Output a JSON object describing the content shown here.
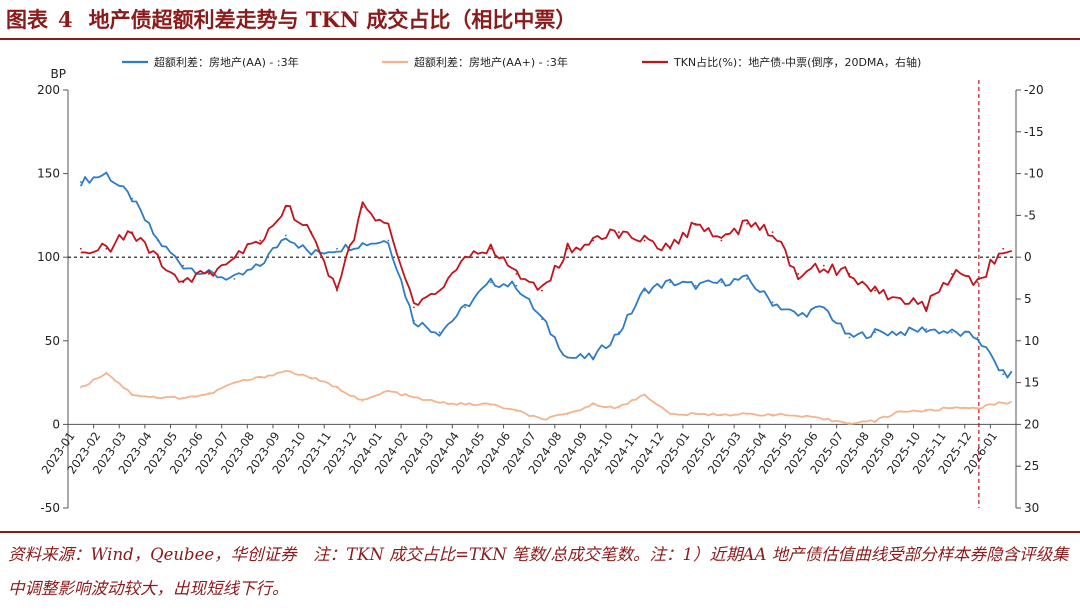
{
  "title": {
    "prefix": "图表",
    "number": "4",
    "text": "地产债超额利差走势与 TKN 成交占比（相比中票）"
  },
  "source_note": "资料来源：Wind，Qeubee，华创证券　注：TKN 成交占比=TKN 笔数/总成交笔数。注：1）近期AA 地产债估值曲线受部分样本券隐含评级集中调整影响波动较大，出现短线下行。",
  "colors": {
    "title": "#8B1A1A",
    "aa": "#2E7BC4",
    "aaplus": "#F2B48E",
    "tkn": "#C0141C",
    "marker": "#C0141C"
  },
  "chart_data": {
    "type": "line",
    "left_axis_unit": "BP",
    "left_ylim": [
      -50,
      200
    ],
    "left_ticks": [
      "-50",
      "0",
      "50",
      "100",
      "150",
      "200"
    ],
    "right_ylim_inverted": [
      30,
      -20
    ],
    "right_ticks": [
      "-20",
      "-15",
      "-10",
      "-5",
      "0",
      "5",
      "10",
      "15",
      "20",
      "25",
      "30"
    ],
    "x_categories": [
      "2023-01",
      "2023-02",
      "2023-03",
      "2023-04",
      "2023-05",
      "2023-06",
      "2023-07",
      "2023-08",
      "2023-09",
      "2023-10",
      "2023-11",
      "2023-12",
      "2024-01",
      "2024-02",
      "2024-03",
      "2024-04",
      "2024-05",
      "2024-06",
      "2024-07",
      "2024-08",
      "2024-09",
      "2024-10",
      "2024-11",
      "2024-12",
      "2025-01",
      "2025-02",
      "2025-03",
      "2025-04",
      "2025-05",
      "2025-06",
      "2025-07",
      "2025-08",
      "2025-09",
      "2025-10",
      "2025-11",
      "2025-12",
      "2026-01"
    ],
    "grid": false,
    "reference_line_left": 100,
    "vertical_marker_month": "2025-12",
    "legend": "top",
    "series": [
      {
        "name": "超额利差：房地产(AA) - :3年",
        "axis": "left",
        "color": "#2E7BC4",
        "values": [
          145,
          150,
          135,
          110,
          95,
          90,
          87,
          95,
          113,
          102,
          105,
          108,
          110,
          62,
          55,
          70,
          85,
          83,
          63,
          40,
          40,
          55,
          80,
          85,
          83,
          85,
          87,
          73,
          65,
          70,
          52,
          55,
          55,
          57,
          55,
          52,
          30
        ]
      },
      {
        "name": "超额利差：房地产(AA+) - :3年",
        "axis": "left",
        "color": "#F2B48E",
        "values": [
          22,
          31,
          18,
          16,
          16,
          18,
          25,
          28,
          32,
          28,
          22,
          14,
          20,
          16,
          13,
          12,
          12,
          8,
          3,
          6,
          12,
          10,
          18,
          6,
          6,
          6,
          6,
          6,
          5,
          3,
          1,
          2,
          8,
          8,
          10,
          10,
          13
        ]
      },
      {
        "name": "TKN占比(%)：地产债-中票(倒序，20DMA，右轴)",
        "axis": "right",
        "color": "#C0141C",
        "values": [
          -1,
          -1,
          -3,
          0,
          3,
          2,
          0,
          -2,
          -6,
          -3,
          4,
          -6,
          -4,
          6,
          4,
          0,
          -1,
          2,
          4,
          -1,
          -2,
          -3,
          -2,
          -1,
          -4,
          -2,
          -4,
          -3,
          2,
          1,
          2,
          4,
          5,
          6,
          2,
          3,
          -1
        ]
      }
    ]
  }
}
